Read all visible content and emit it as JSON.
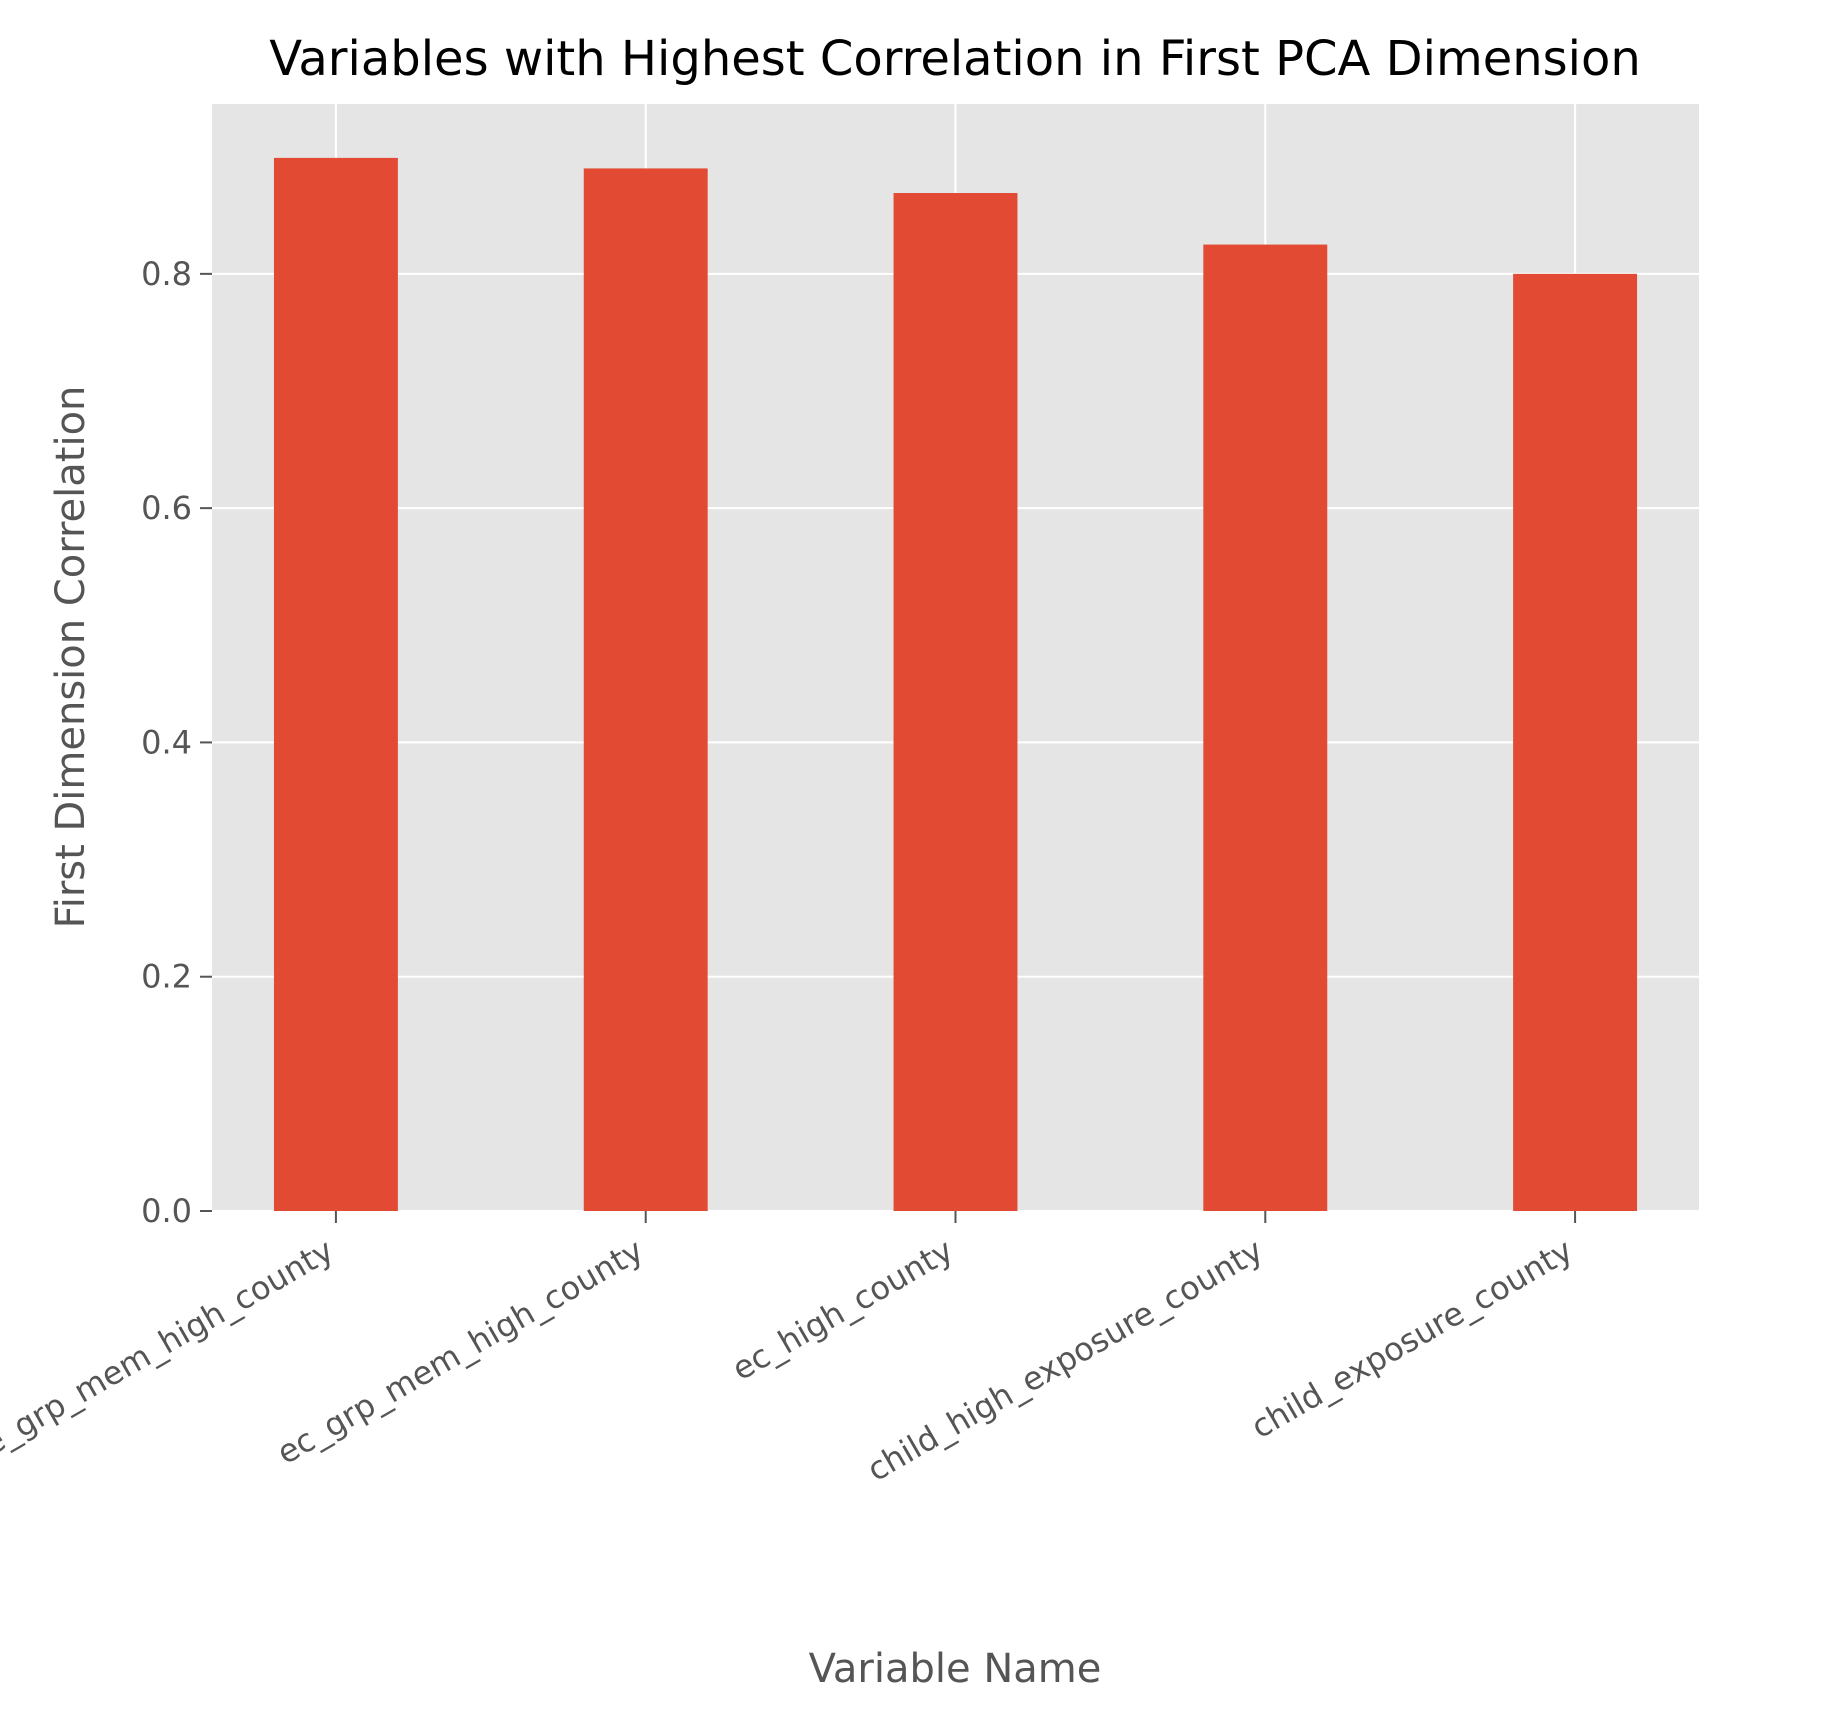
{
  "chart_data": {
    "type": "bar",
    "title": "Variables with Highest Correlation in First PCA Dimension",
    "xlabel": "Variable Name",
    "ylabel": "First Dimension Correlation",
    "categories": [
      "exposure_grp_mem_high_county",
      "ec_grp_mem_high_county",
      "ec_high_county",
      "child_high_exposure_county",
      "child_exposure_county"
    ],
    "values": [
      0.899,
      0.89,
      0.869,
      0.825,
      0.8
    ],
    "ylim": [
      0,
      0.945
    ],
    "yticks": [
      0.0,
      0.2,
      0.4,
      0.6,
      0.8
    ],
    "ytick_labels": [
      "0.0",
      "0.2",
      "0.4",
      "0.6",
      "0.8"
    ],
    "grid": true,
    "bar_color": "#E24A33",
    "plot_background": "#E5E5E5",
    "grid_color": "#FFFFFF"
  }
}
